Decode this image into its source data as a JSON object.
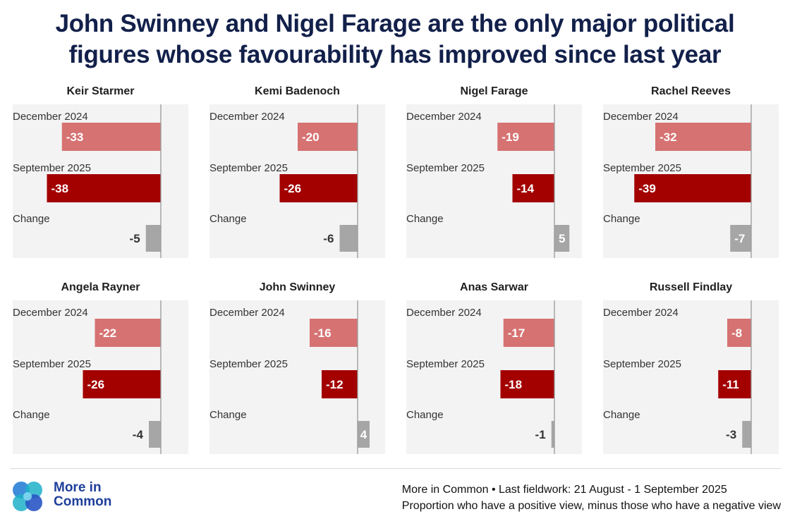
{
  "title_line1": "John Swinney and Nigel Farage are the only major political",
  "title_line2": "figures whose favourability has improved since last year",
  "colors": {
    "dec2024": "#d67272",
    "sep2025": "#a30000",
    "change": "#a6a6a6",
    "panel_bg": "#f3f3f3",
    "axis": "#9a9a9a",
    "title": "#12204a",
    "brand": "#1f3f9b"
  },
  "chart_data": {
    "type": "bar",
    "orientation": "horizontal",
    "row_labels": [
      "December 2024",
      "September 2025",
      "Change"
    ],
    "xlim": [
      -40,
      7
    ],
    "panels": [
      {
        "title": "Keir Starmer",
        "values": [
          -33,
          -38,
          -5
        ]
      },
      {
        "title": "Kemi Badenoch",
        "values": [
          -20,
          -26,
          -6
        ]
      },
      {
        "title": "Nigel Farage",
        "values": [
          -19,
          -14,
          5
        ]
      },
      {
        "title": "Rachel Reeves",
        "values": [
          -32,
          -39,
          -7
        ]
      },
      {
        "title": "Angela Rayner",
        "values": [
          -22,
          -26,
          -4
        ]
      },
      {
        "title": "John Swinney",
        "values": [
          -16,
          -12,
          4
        ]
      },
      {
        "title": "Anas Sarwar",
        "values": [
          -17,
          -18,
          -1
        ]
      },
      {
        "title": "Russell Findlay",
        "values": [
          -8,
          -11,
          -3
        ]
      }
    ]
  },
  "footer": {
    "brand_line1": "More in",
    "brand_line2": "Common",
    "source_line1": "More in Common • Last fieldwork: 21 August - 1 September 2025",
    "source_line2": "Proportion who have a positive view, minus those who have a negative view"
  }
}
